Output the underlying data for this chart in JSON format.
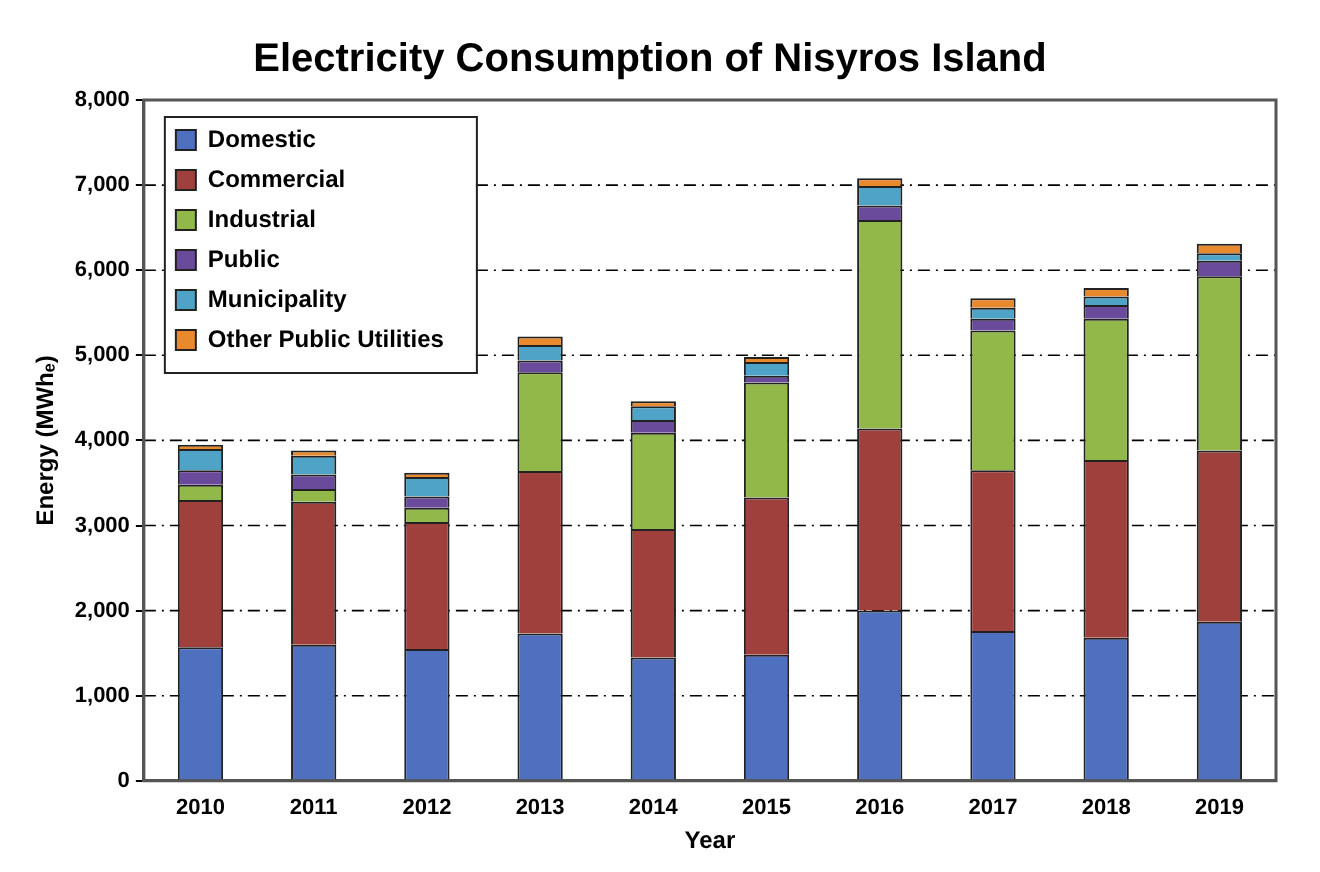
{
  "chart_data": {
    "type": "bar",
    "title": "Electricity Consumption of Nisyros Island",
    "xlabel": "Year",
    "ylabel": "Energy (MWhₑ)",
    "stacked": true,
    "legend": "top left",
    "grid": "y",
    "categories": [
      "2010",
      "2011",
      "2012",
      "2013",
      "2014",
      "2015",
      "2016",
      "2017",
      "2018",
      "2019"
    ],
    "ylim": [
      0,
      8000
    ],
    "yticks": [
      {
        "value": 0,
        "label": "0"
      },
      {
        "value": 1000,
        "label": "1,000"
      },
      {
        "value": 2000,
        "label": "2,000"
      },
      {
        "value": 3000,
        "label": "3,000"
      },
      {
        "value": 4000,
        "label": "4,000"
      },
      {
        "value": 5000,
        "label": "5,000"
      },
      {
        "value": 6000,
        "label": "6,000"
      },
      {
        "value": 7000,
        "label": "7,000"
      },
      {
        "value": 8000,
        "label": "8,000"
      }
    ],
    "series": [
      {
        "name": "Domestic",
        "color": "#4f6fbf",
        "values": [
          1570,
          1600,
          1550,
          1730,
          1450,
          1480,
          2000,
          1760,
          1680,
          1870
        ]
      },
      {
        "name": "Commercial",
        "color": "#a0403c",
        "values": [
          1730,
          1680,
          1490,
          1910,
          1510,
          1850,
          2140,
          1890,
          2090,
          2010
        ]
      },
      {
        "name": "Industrial",
        "color": "#92b84a",
        "values": [
          180,
          150,
          170,
          1160,
          1130,
          1350,
          2450,
          1640,
          1660,
          2050
        ]
      },
      {
        "name": "Public",
        "color": "#6a4a9a",
        "values": [
          170,
          170,
          130,
          140,
          150,
          80,
          170,
          140,
          160,
          180
        ]
      },
      {
        "name": "Municipality",
        "color": "#4fa3c6",
        "values": [
          250,
          220,
          230,
          180,
          160,
          160,
          230,
          130,
          100,
          90
        ]
      },
      {
        "name": "Other Public Utilities",
        "color": "#e8892e",
        "values": [
          50,
          60,
          50,
          100,
          60,
          60,
          90,
          110,
          100,
          110
        ]
      }
    ]
  }
}
